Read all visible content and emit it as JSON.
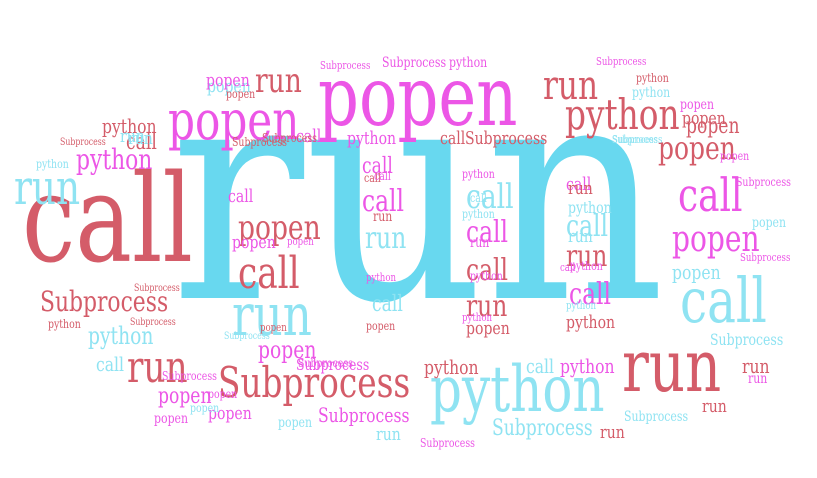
{
  "palette": {
    "cyan": "#68d8ef",
    "magenta": "#ec56e6",
    "red": "#d45c69",
    "light_cyan": "#8fe3f2"
  },
  "words": [
    {
      "text": "run",
      "color": "cyan"
    },
    {
      "text": "call",
      "color": "red"
    },
    {
      "text": "popen",
      "color": "magenta"
    },
    {
      "text": "run",
      "color": "red"
    },
    {
      "text": "popen",
      "color": "magenta"
    },
    {
      "text": "python",
      "color": "light_cyan"
    },
    {
      "text": "run",
      "color": "light_cyan"
    },
    {
      "text": "call",
      "color": "light_cyan"
    },
    {
      "text": "python",
      "color": "red"
    },
    {
      "text": "Subprocess",
      "color": "red"
    },
    {
      "text": "run",
      "color": "light_cyan"
    },
    {
      "text": "run",
      "color": "red"
    },
    {
      "text": "call",
      "color": "red"
    },
    {
      "text": "popen",
      "color": "red"
    },
    {
      "text": "call",
      "color": "magenta"
    },
    {
      "text": "popen",
      "color": "magenta"
    },
    {
      "text": "Subprocess",
      "color": "red"
    },
    {
      "text": "run",
      "color": "red"
    },
    {
      "text": "popen",
      "color": "red"
    },
    {
      "text": "python",
      "color": "magenta"
    },
    {
      "text": "run",
      "color": "red"
    },
    {
      "text": "Subprocess",
      "color": "light_cyan"
    },
    {
      "text": "call",
      "color": "light_cyan"
    },
    {
      "text": "popen",
      "color": "magenta"
    },
    {
      "text": "call",
      "color": "magenta"
    },
    {
      "text": "run",
      "color": "red"
    },
    {
      "text": "popen",
      "color": "red"
    },
    {
      "text": "call",
      "color": "magenta"
    },
    {
      "text": "call",
      "color": "light_cyan"
    },
    {
      "text": "run",
      "color": "red"
    },
    {
      "text": "popen",
      "color": "light_cyan"
    },
    {
      "text": "call",
      "color": "red"
    },
    {
      "text": "python",
      "color": "red"
    },
    {
      "text": "run",
      "color": "light_cyan"
    },
    {
      "text": "call",
      "color": "magenta"
    },
    {
      "text": "popen",
      "color": "magenta"
    },
    {
      "text": "Subprocess",
      "color": "red"
    },
    {
      "text": "Subprocess",
      "color": "light_cyan"
    },
    {
      "text": "Subprocess",
      "color": "magenta"
    },
    {
      "text": "Subprocess",
      "color": "magenta"
    },
    {
      "text": "python",
      "color": "magenta"
    },
    {
      "text": "python",
      "color": "magenta"
    },
    {
      "text": "python",
      "color": "light_cyan"
    },
    {
      "text": "popen",
      "color": "light_cyan"
    },
    {
      "text": "call",
      "color": "light_cyan"
    },
    {
      "text": "popen",
      "color": "magenta"
    },
    {
      "text": "call",
      "color": "magenta"
    },
    {
      "text": "Subprocess",
      "color": "red"
    },
    {
      "text": "python",
      "color": "light_cyan"
    },
    {
      "text": "popen",
      "color": "red"
    },
    {
      "text": "call",
      "color": "magenta"
    },
    {
      "text": "call",
      "color": "light_cyan"
    },
    {
      "text": "python",
      "color": "light_cyan"
    },
    {
      "text": "Subprocess",
      "color": "magenta"
    },
    {
      "text": "popen",
      "color": "magenta"
    },
    {
      "text": "popen",
      "color": "red"
    },
    {
      "text": "Subprocess",
      "color": "magenta"
    },
    {
      "text": "python",
      "color": "red"
    },
    {
      "text": "python",
      "color": "light_cyan"
    },
    {
      "text": "call",
      "color": "red"
    },
    {
      "text": "python",
      "color": "red"
    },
    {
      "text": "python",
      "color": "magenta"
    },
    {
      "text": "python",
      "color": "light_cyan"
    },
    {
      "text": "call",
      "color": "magenta"
    },
    {
      "text": "python",
      "color": "magenta"
    },
    {
      "text": "call",
      "color": "red"
    },
    {
      "text": "popen",
      "color": "red"
    },
    {
      "text": "call",
      "color": "magenta"
    },
    {
      "text": "popen",
      "color": "light_cyan"
    },
    {
      "text": "popen",
      "color": "light_cyan"
    },
    {
      "text": "Subprocess",
      "color": "light_cyan"
    },
    {
      "text": "Subprocess",
      "color": "red"
    },
    {
      "text": "run",
      "color": "red"
    },
    {
      "text": "run",
      "color": "magenta"
    },
    {
      "text": "run",
      "color": "light_cyan"
    },
    {
      "text": "Subprocess",
      "color": "red"
    },
    {
      "text": "Subprocess",
      "color": "red"
    },
    {
      "text": "Subprocess",
      "color": "light_cyan"
    },
    {
      "text": "run",
      "color": "light_cyan"
    },
    {
      "text": "call",
      "color": "light_cyan"
    },
    {
      "text": "run",
      "color": "red"
    },
    {
      "text": "run",
      "color": "red"
    },
    {
      "text": "Subprocess",
      "color": "light_cyan"
    },
    {
      "text": "popen",
      "color": "magenta"
    },
    {
      "text": "run",
      "color": "red"
    },
    {
      "text": "popen",
      "color": "light_cyan"
    },
    {
      "text": "run",
      "color": "magenta"
    },
    {
      "text": "Subprocess",
      "color": "magenta"
    },
    {
      "text": "python",
      "color": "red"
    },
    {
      "text": "popen",
      "color": "red"
    },
    {
      "text": "popen",
      "color": "magenta"
    },
    {
      "text": "call",
      "color": "red"
    },
    {
      "text": "Subprocess",
      "color": "magenta"
    },
    {
      "text": "call",
      "color": "magenta"
    },
    {
      "text": "Subprocess",
      "color": "magenta"
    },
    {
      "text": "Subprocess",
      "color": "red"
    },
    {
      "text": "python",
      "color": "red"
    },
    {
      "text": "Subprocess",
      "color": "magenta"
    },
    {
      "text": "Subprocess",
      "color": "magenta"
    },
    {
      "text": "popen",
      "color": "magenta"
    },
    {
      "text": "popen",
      "color": "magenta"
    },
    {
      "text": "popen",
      "color": "magenta"
    },
    {
      "text": "Subprocess",
      "color": "light_cyan"
    },
    {
      "text": "run",
      "color": "light_cyan"
    },
    {
      "text": "run",
      "color": "red"
    },
    {
      "text": "Subprocess",
      "color": "magenta"
    },
    {
      "text": "python",
      "color": "magenta"
    },
    {
      "text": "run",
      "color": "light_cyan"
    },
    {
      "text": "call",
      "color": "light_cyan"
    },
    {
      "text": "python",
      "color": "magenta"
    },
    {
      "text": "popen",
      "color": "magenta"
    },
    {
      "text": "popen",
      "color": "red"
    },
    {
      "text": "python",
      "color": "magenta"
    },
    {
      "text": "call",
      "color": "magenta"
    },
    {
      "text": "python",
      "color": "light_cyan"
    },
    {
      "text": "python",
      "color": "magenta"
    }
  ]
}
